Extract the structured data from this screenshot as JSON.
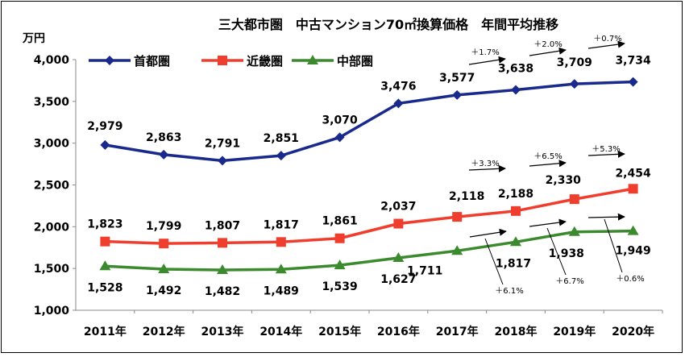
{
  "chart_data": {
    "type": "line",
    "title": "三大都市圏　中古マンション70㎡換算価格　年間平均推移",
    "ylabel": "万円",
    "xlabel": "",
    "ylim": [
      1000,
      4000
    ],
    "yticks": [
      "1,000",
      "1,500",
      "2,000",
      "2,500",
      "3,000",
      "3,500",
      "4,000"
    ],
    "ytick_values": [
      1000,
      1500,
      2000,
      2500,
      3000,
      3500,
      4000
    ],
    "categories": [
      "2011年",
      "2012年",
      "2013年",
      "2014年",
      "2015年",
      "2016年",
      "2017年",
      "2018年",
      "2019年",
      "2020年"
    ],
    "grid": false,
    "legend": "top-left",
    "series": [
      {
        "name": "首都圏",
        "color": "#1a2a8c",
        "marker": "diamond",
        "values": [
          2979,
          2863,
          2791,
          2851,
          3070,
          3476,
          3577,
          3638,
          3709,
          3734
        ],
        "labels": [
          "2,979",
          "2,863",
          "2,791",
          "2,851",
          "3,070",
          "3,476",
          "3,577",
          "3,638",
          "3,709",
          "3,734"
        ]
      },
      {
        "name": "近畿圏",
        "color": "#f03e2e",
        "marker": "square",
        "values": [
          1823,
          1799,
          1807,
          1817,
          1861,
          2037,
          2118,
          2188,
          2330,
          2454
        ],
        "labels": [
          "1,823",
          "1,799",
          "1,807",
          "1,817",
          "1,861",
          "2,037",
          "2,118",
          "2,188",
          "2,330",
          "2,454"
        ]
      },
      {
        "name": "中部圏",
        "color": "#3c8a2e",
        "marker": "triangle",
        "values": [
          1528,
          1492,
          1482,
          1489,
          1539,
          1627,
          1711,
          1817,
          1938,
          1949
        ],
        "labels": [
          "1,528",
          "1,492",
          "1,482",
          "1,489",
          "1,539",
          "1,627",
          "1,711",
          "1,817",
          "1,938",
          "1,949"
        ]
      }
    ],
    "annotations": [
      {
        "text": "＋1.7%",
        "series": 0,
        "from": 6
      },
      {
        "text": "＋2.0%",
        "series": 0,
        "from": 7
      },
      {
        "text": "＋0.7%",
        "series": 0,
        "from": 8
      },
      {
        "text": "＋3.3%",
        "series": 1,
        "from": 6
      },
      {
        "text": "＋6.5%",
        "series": 1,
        "from": 7
      },
      {
        "text": "＋5.3%",
        "series": 1,
        "from": 8
      },
      {
        "text": "＋6.1%",
        "series": 2,
        "from": 6
      },
      {
        "text": "＋6.7%",
        "series": 2,
        "from": 7
      },
      {
        "text": "＋0.6%",
        "series": 2,
        "from": 8
      }
    ]
  }
}
